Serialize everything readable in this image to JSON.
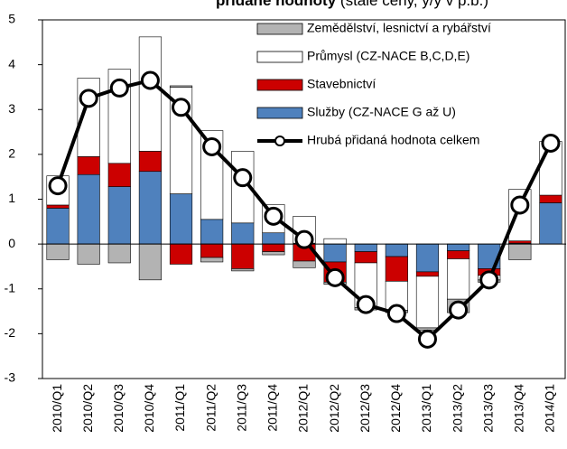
{
  "chart_data": {
    "type": "bar",
    "stacked": true,
    "title": "přidané hodnoty",
    "subtitle": "(stálé ceny, y/y v p.b.)",
    "categories": [
      "2010/Q1",
      "2010/Q2",
      "2010/Q3",
      "2010/Q4",
      "2011/Q1",
      "2011/Q2",
      "2011/Q3",
      "2011/Q4",
      "2012/Q1",
      "2012/Q2",
      "2012/Q3",
      "2012/Q4",
      "2013/Q1",
      "2013/Q2",
      "2013/Q3",
      "2013/Q4",
      "2014/Q1"
    ],
    "series": [
      {
        "name": "Zemědělství, lesnictví a rybářství",
        "color": "#b3b3b3",
        "type": "bar",
        "values": [
          -0.35,
          -0.45,
          -0.42,
          -0.8,
          0.03,
          -0.1,
          -0.05,
          -0.07,
          -0.15,
          -0.05,
          -0.05,
          -0.05,
          -0.05,
          -0.3,
          -0.05,
          -0.35,
          0.0
        ]
      },
      {
        "name": "Průmysl (CZ-NACE B,C,D,E)",
        "color": "#ffffff",
        "type": "bar",
        "values": [
          0.65,
          1.75,
          2.1,
          2.55,
          2.38,
          1.98,
          1.6,
          0.63,
          0.6,
          0.12,
          -1.0,
          -0.65,
          -1.15,
          -0.9,
          -0.1,
          1.15,
          1.2
        ]
      },
      {
        "name": "Stavebnictví",
        "color": "#cc0000",
        "type": "bar",
        "values": [
          0.07,
          0.4,
          0.52,
          0.45,
          -0.45,
          -0.3,
          -0.55,
          -0.17,
          -0.38,
          -0.45,
          -0.25,
          -0.55,
          -0.1,
          -0.18,
          -0.15,
          0.05,
          0.17
        ]
      },
      {
        "name": "Služby (CZ-NACE G až U)",
        "color": "#4f81bd",
        "type": "bar",
        "values": [
          0.8,
          1.55,
          1.28,
          1.62,
          1.12,
          0.55,
          0.47,
          0.25,
          0.02,
          -0.4,
          -0.17,
          -0.28,
          -0.62,
          -0.15,
          -0.55,
          0.02,
          0.92
        ]
      },
      {
        "name": "Hrubá přidaná hodnota celkem",
        "color": "#000000",
        "type": "line",
        "values": [
          1.3,
          3.25,
          3.48,
          3.65,
          3.05,
          2.17,
          1.48,
          0.62,
          0.1,
          -0.75,
          -1.35,
          -1.55,
          -2.12,
          -1.47,
          -0.8,
          0.87,
          2.25
        ]
      }
    ],
    "ylim": [
      -3,
      5
    ],
    "yticks": [
      -3,
      -2,
      -1,
      0,
      1,
      2,
      3,
      4,
      5
    ],
    "legend": "upper right"
  }
}
